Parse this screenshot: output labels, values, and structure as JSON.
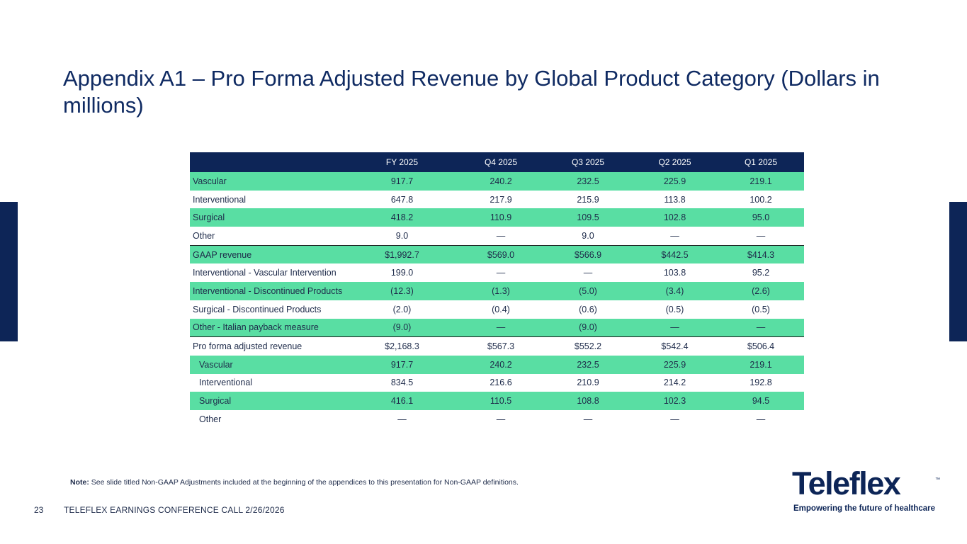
{
  "slide": {
    "title": "Appendix A1 – Pro Forma Adjusted Revenue by Global Product Category (Dollars in millions)",
    "page_number": "23",
    "footer": "TELEFLEX EARNINGS CONFERENCE CALL 2/26/2026",
    "note_label": "Note:",
    "note_text": " See slide titled Non-GAAP Adjustments included at the beginning of the appendices to this presentation for Non-GAAP definitions."
  },
  "logo": {
    "wordmark": "Teleflex",
    "trademark": "™",
    "tagline": "Empowering the future of healthcare"
  },
  "colors": {
    "navy": "#0d2557",
    "green": "#59dea3"
  },
  "table": {
    "columns": [
      "",
      "FY 2025",
      "Q4 2025",
      "Q3 2025",
      "Q2 2025",
      "Q1 2025"
    ],
    "rows": [
      [
        "Vascular",
        "917.7",
        "240.2",
        "232.5",
        "225.9",
        "219.1"
      ],
      [
        "Interventional",
        "647.8",
        "217.9",
        "215.9",
        "113.8",
        "100.2"
      ],
      [
        "Surgical",
        "418.2",
        "110.9",
        "109.5",
        "102.8",
        "95.0"
      ],
      [
        "Other",
        "9.0",
        "—",
        "9.0",
        "—",
        "—"
      ],
      [
        "GAAP revenue",
        "$1,992.7",
        "$569.0",
        "$566.9",
        "$442.5",
        "$414.3"
      ],
      [
        "Interventional - Vascular Intervention",
        "199.0",
        "—",
        "—",
        "103.8",
        "95.2"
      ],
      [
        "Interventional - Discontinued Products",
        "(12.3)",
        "(1.3)",
        "(5.0)",
        "(3.4)",
        "(2.6)"
      ],
      [
        "Surgical - Discontinued Products",
        "(2.0)",
        "(0.4)",
        "(0.6)",
        "(0.5)",
        "(0.5)"
      ],
      [
        "Other - Italian payback measure",
        "(9.0)",
        "—",
        "(9.0)",
        "—",
        "—"
      ],
      [
        "Pro forma adjusted revenue",
        "$2,168.3",
        "$567.3",
        "$552.2",
        "$542.4",
        "$506.4"
      ],
      [
        "Vascular",
        "917.7",
        "240.2",
        "232.5",
        "225.9",
        "219.1"
      ],
      [
        "Interventional",
        "834.5",
        "216.6",
        "210.9",
        "214.2",
        "192.8"
      ],
      [
        "Surgical",
        "416.1",
        "110.5",
        "108.8",
        "102.3",
        "94.5"
      ],
      [
        "Other",
        "—",
        "—",
        "—",
        "—",
        "—"
      ]
    ]
  }
}
